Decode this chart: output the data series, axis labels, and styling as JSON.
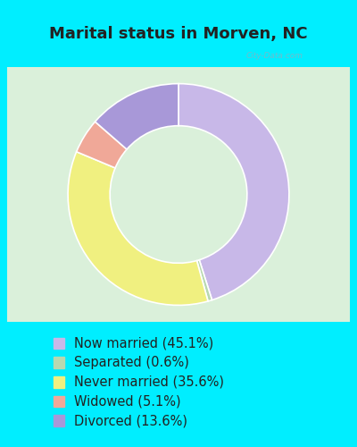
{
  "title": "Marital status in Morven, NC",
  "slices": [
    {
      "label": "Now married (45.1%)",
      "value": 45.1,
      "color": "#c8b8e8"
    },
    {
      "label": "Separated (0.6%)",
      "value": 0.6,
      "color": "#b8d8b0"
    },
    {
      "label": "Never married (35.6%)",
      "value": 35.6,
      "color": "#f0f080"
    },
    {
      "label": "Widowed (5.1%)",
      "value": 5.1,
      "color": "#f0a898"
    },
    {
      "label": "Divorced (13.6%)",
      "value": 13.6,
      "color": "#a898d8"
    }
  ],
  "title_color": "#222222",
  "title_fontsize": 13,
  "legend_fontsize": 10.5,
  "bg_outer": "#00eeff",
  "bg_chart_center": "#d8eed8",
  "bg_chart_edge": "#c0e0c8",
  "bg_legend": "#00eeff",
  "watermark": "City-Data.com"
}
